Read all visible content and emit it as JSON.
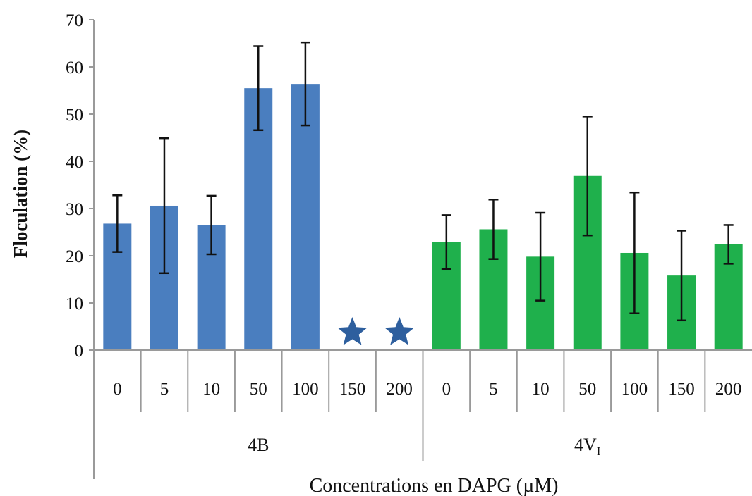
{
  "chart_data": {
    "type": "bar",
    "ylabel": "Floculation (%)",
    "xlabel": "Concentrations en DAPG (µM)",
    "ylim": [
      0,
      70
    ],
    "yticks": [
      0,
      10,
      20,
      30,
      40,
      50,
      60,
      70
    ],
    "grid": false,
    "legend": "none",
    "colors": {
      "4B": "#4a7ebf",
      "4V": "#1fb04c",
      "star": "#2e5f9e",
      "error": "#111111"
    },
    "groups": [
      {
        "name": "4B",
        "name_main": "4V",
        "name_sub": "",
        "categories": [
          "0",
          "5",
          "10",
          "50",
          "100",
          "150",
          "200"
        ],
        "values": [
          26.8,
          30.6,
          26.5,
          55.5,
          56.4,
          null,
          null
        ],
        "errors": [
          6.0,
          14.3,
          6.2,
          8.9,
          8.8,
          null,
          null
        ],
        "markers": [
          null,
          null,
          null,
          null,
          null,
          "star",
          "star"
        ]
      },
      {
        "name": "4VI",
        "name_main": "4V",
        "name_sub": "I",
        "categories": [
          "0",
          "5",
          "10",
          "50",
          "100",
          "150",
          "200"
        ],
        "values": [
          22.9,
          25.6,
          19.8,
          36.9,
          20.6,
          15.8,
          22.4
        ],
        "errors": [
          5.7,
          6.3,
          9.3,
          12.6,
          12.8,
          9.5,
          4.1
        ],
        "markers": [
          null,
          null,
          null,
          null,
          null,
          null,
          null
        ]
      }
    ]
  }
}
